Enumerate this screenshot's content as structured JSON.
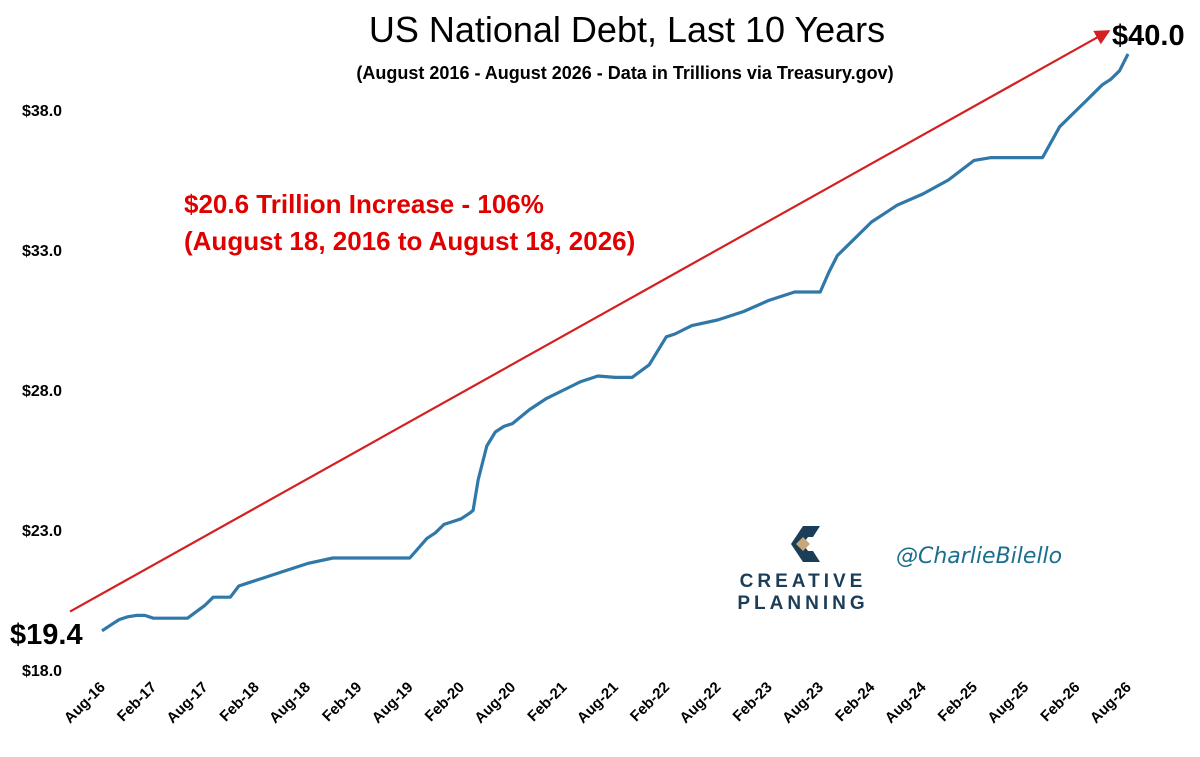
{
  "chart_data": {
    "type": "line",
    "title": "US National Debt, Last 10 Years",
    "subtitle": "(August 2016 - August 2026 - Data in Trillions via Treasury.gov)",
    "xlabel": "",
    "ylabel": "",
    "ylim": [
      18,
      40
    ],
    "yticks": [
      "$18.0",
      "$23.0",
      "$28.0",
      "$33.0",
      "$38.0"
    ],
    "ytick_values": [
      18,
      23,
      28,
      33,
      38
    ],
    "xticks": [
      "Aug-16",
      "Feb-17",
      "Aug-17",
      "Feb-18",
      "Aug-18",
      "Feb-19",
      "Aug-19",
      "Feb-20",
      "Aug-20",
      "Feb-21",
      "Aug-21",
      "Feb-22",
      "Aug-22",
      "Feb-23",
      "Aug-23",
      "Feb-24",
      "Aug-24",
      "Feb-25",
      "Aug-25",
      "Feb-26",
      "Aug-26"
    ],
    "x_range": [
      0,
      120
    ],
    "start_label": "$19.4",
    "end_label": "$40.0",
    "annotation_line1": "$20.6 Trillion Increase  - 106%",
    "annotation_line2": "(August 18, 2016 to August 18, 2026)",
    "colors": {
      "series": "#2f78a8",
      "trend": "#d42020",
      "annotation": "#e00000"
    },
    "grid": false,
    "legend": "none",
    "series": [
      {
        "months_from_aug16": [
          0,
          1,
          2,
          3,
          4,
          5,
          6,
          7,
          10,
          12,
          13,
          14,
          15,
          16,
          17,
          18,
          19,
          21,
          24,
          27,
          30,
          32,
          36,
          38,
          39,
          40,
          41,
          42,
          43,
          43.4,
          44,
          45,
          46,
          47,
          48,
          50,
          52,
          54,
          56,
          58,
          60,
          62,
          64,
          66,
          67,
          69,
          72,
          75,
          78,
          81,
          83,
          84,
          85,
          86,
          87,
          89,
          90,
          91,
          93,
          96,
          99,
          102,
          104,
          105,
          106,
          107,
          108,
          110,
          112,
          114,
          115,
          116,
          117,
          118,
          119,
          120
        ],
        "values": [
          19.4,
          19.6,
          19.8,
          19.9,
          19.95,
          19.95,
          19.85,
          19.85,
          19.85,
          20.3,
          20.6,
          20.6,
          20.6,
          21.0,
          21.1,
          21.2,
          21.3,
          21.5,
          21.8,
          22.0,
          22.0,
          22.0,
          22.0,
          22.7,
          22.9,
          23.2,
          23.3,
          23.4,
          23.6,
          23.7,
          24.8,
          26.0,
          26.5,
          26.7,
          26.8,
          27.3,
          27.7,
          28.0,
          28.3,
          28.5,
          28.45,
          28.45,
          28.9,
          29.9,
          30.0,
          30.3,
          30.5,
          30.8,
          31.2,
          31.5,
          31.5,
          31.5,
          32.2,
          32.8,
          33.1,
          33.7,
          34.0,
          34.2,
          34.6,
          35.0,
          35.5,
          36.2,
          36.3,
          36.3,
          36.3,
          36.3,
          36.3,
          36.3,
          37.4,
          38.0,
          38.3,
          38.6,
          38.9,
          39.1,
          39.4,
          40.0
        ]
      }
    ],
    "trend_line": {
      "x": [
        0,
        119.5
      ],
      "values": [
        20.3,
        40.8
      ]
    }
  },
  "branding": {
    "logo_name": "creative-planning-logo",
    "logo_line1": "CREATIVE",
    "logo_line2": "PLANNING",
    "logo_colors": {
      "navy": "#1c3d57",
      "tan": "#c8a77a"
    },
    "handle": "@CharlieBilello"
  }
}
